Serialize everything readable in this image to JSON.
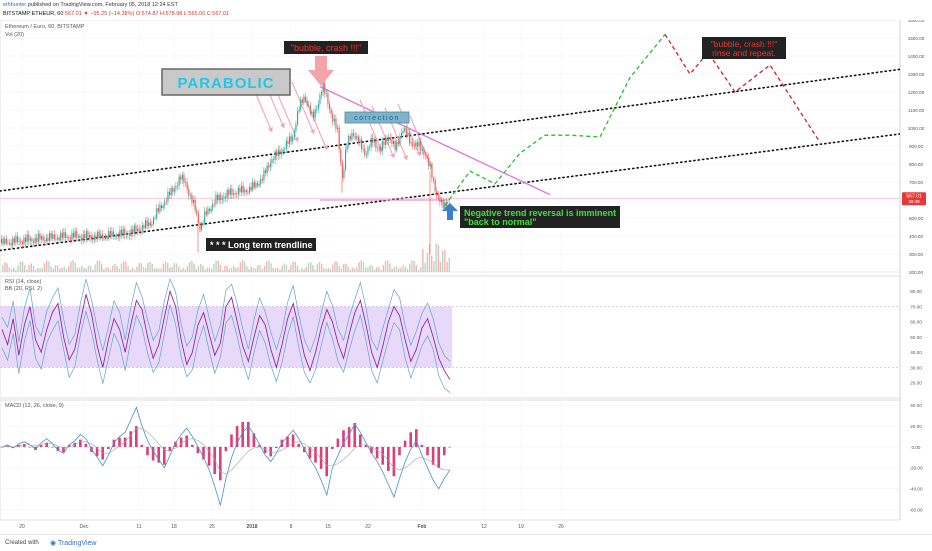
{
  "header": {
    "user": "ethhunter",
    "published": "published on TradingView.com, February 05, 2018 12:24 EST",
    "symbol_line": "BITSTAMP:ETHEUR, 60",
    "ohlc": "567.01 ▼ −95.25 (−14.38%) O:574.87 H:578.98 L:565.00 C:567.01"
  },
  "panes": {
    "main_title": "Ethereum / Euro, 60, BITSTAMP",
    "vol_label": "Vol (20)",
    "rsi_title": "RSI (14, close)",
    "bb_title": "BB (20, RSI, 2)",
    "macd_title": "MACD (12, 26, close, 9)"
  },
  "annotations": {
    "parabolic": "PARABOLIC",
    "bubble1": "\"bubble, crash !!!\"",
    "bubble2_line1": "\"bubble, crash !!!\"",
    "bubble2_line2": "rinse and repeat.",
    "reversal_line1": "Negative trend reversal is imminent",
    "reversal_line2": "\"back to normal\"",
    "trendline_label": "* * * Long term trendline",
    "correction": "correction"
  },
  "price_tag": {
    "value": "567.01",
    "time": "39:48"
  },
  "footer": {
    "created": "Created with",
    "brand": "TradingView"
  },
  "colors": {
    "candle_up": "#26a69a",
    "candle_down": "#ef5350",
    "rsi_line": "#8e24aa",
    "rsi_band": "#e8d9fb",
    "macd_line": "#4a90c8",
    "signal_line": "#d63a7e",
    "projection_green": "#22c02a",
    "projection_red": "#d32020",
    "resistance": "#e07ad8"
  },
  "chart_data": {
    "type": "line",
    "price_axis": {
      "ylim": [
        200,
        1600
      ],
      "ticks": [
        200,
        300,
        400,
        500,
        600,
        700,
        800,
        900,
        1000,
        1100,
        1200,
        1300,
        1400,
        1500,
        1600
      ]
    },
    "rsi_axis": {
      "ylim": [
        10,
        90
      ],
      "ticks": [
        20,
        30,
        40,
        50,
        60,
        70,
        80
      ],
      "overbought": 70,
      "oversold": 30
    },
    "macd_axis": {
      "ylim": [
        -70,
        45
      ],
      "ticks": [
        -60,
        -40,
        -20,
        0,
        20,
        40
      ]
    },
    "x_ticks": [
      "20",
      "Dec",
      "11",
      "18",
      "25",
      "2018",
      "8",
      "15",
      "22",
      "Feb",
      "12",
      "19",
      "26"
    ],
    "price_path": [
      [
        0,
        360
      ],
      [
        20,
        375
      ],
      [
        40,
        385
      ],
      [
        70,
        400
      ],
      [
        100,
        395
      ],
      [
        130,
        420
      ],
      [
        150,
        470
      ],
      [
        160,
        560
      ],
      [
        170,
        640
      ],
      [
        180,
        720
      ],
      [
        185,
        700
      ],
      [
        190,
        610
      ],
      [
        195,
        545
      ],
      [
        200,
        440
      ],
      [
        205,
        520
      ],
      [
        215,
        600
      ],
      [
        230,
        640
      ],
      [
        250,
        660
      ],
      [
        262,
        720
      ],
      [
        270,
        820
      ],
      [
        278,
        860
      ],
      [
        285,
        900
      ],
      [
        292,
        950
      ],
      [
        298,
        1100
      ],
      [
        304,
        1180
      ],
      [
        308,
        1120
      ],
      [
        312,
        1050
      ],
      [
        318,
        1150
      ],
      [
        322,
        1230
      ],
      [
        327,
        1160
      ],
      [
        332,
        1050
      ],
      [
        337,
        980
      ],
      [
        342,
        720
      ],
      [
        346,
        900
      ],
      [
        352,
        980
      ],
      [
        358,
        920
      ],
      [
        365,
        860
      ],
      [
        372,
        930
      ],
      [
        380,
        880
      ],
      [
        388,
        960
      ],
      [
        395,
        880
      ],
      [
        402,
        1000
      ],
      [
        410,
        920
      ],
      [
        418,
        900
      ],
      [
        425,
        860
      ],
      [
        430,
        760
      ],
      [
        436,
        640
      ],
      [
        442,
        560
      ],
      [
        448,
        580
      ]
    ],
    "projection_green": [
      [
        445,
        570
      ],
      [
        470,
        760
      ],
      [
        495,
        690
      ],
      [
        520,
        860
      ],
      [
        545,
        960
      ],
      [
        570,
        960
      ],
      [
        600,
        950
      ],
      [
        630,
        1280
      ],
      [
        665,
        1520
      ]
    ],
    "projection_red": [
      [
        665,
        1520
      ],
      [
        690,
        1300
      ],
      [
        708,
        1420
      ],
      [
        735,
        1200
      ],
      [
        770,
        1350
      ],
      [
        820,
        920
      ]
    ],
    "trendline_upper": [
      [
        0,
        650
      ],
      [
        932,
        1350
      ]
    ],
    "trendline_lower": [
      [
        0,
        320
      ],
      [
        932,
        990
      ]
    ],
    "resistance_line": [
      [
        320,
        1230
      ],
      [
        550,
        630
      ]
    ],
    "support_level": 610,
    "rsi_values": [
      55,
      45,
      62,
      38,
      58,
      70,
      48,
      40,
      55,
      66,
      72,
      50,
      35,
      42,
      60,
      78,
      65,
      44,
      30,
      48,
      62,
      55,
      40,
      58,
      74,
      68,
      50,
      36,
      45,
      63,
      80,
      70,
      48,
      32,
      40,
      58,
      66,
      52,
      38,
      46,
      70,
      76,
      60,
      44,
      34,
      50,
      64,
      58,
      42,
      30,
      45,
      62,
      72,
      55,
      38,
      28,
      40,
      56,
      68,
      60,
      46,
      36,
      52,
      66,
      74,
      58,
      40,
      30,
      44,
      60,
      70,
      64,
      48,
      34,
      42,
      56,
      62,
      50,
      36,
      28,
      22
    ],
    "macd_values": [
      0,
      2,
      -1,
      3,
      5,
      2,
      -2,
      4,
      8,
      3,
      -3,
      -6,
      2,
      6,
      12,
      8,
      -2,
      -10,
      -18,
      -8,
      4,
      10,
      14,
      26,
      38,
      20,
      6,
      -4,
      -12,
      -20,
      -8,
      4,
      12,
      18,
      10,
      0,
      -10,
      -22,
      -38,
      -56,
      -30,
      -10,
      4,
      14,
      20,
      12,
      2,
      -8,
      -14,
      -6,
      4,
      10,
      16,
      8,
      -2,
      -12,
      -20,
      -32,
      -46,
      -20,
      -8,
      4,
      12,
      22,
      14,
      4,
      -6,
      -14,
      -24,
      -36,
      -48,
      -30,
      -14,
      -2,
      6,
      -8,
      -20,
      -32,
      -40,
      -30,
      -22
    ],
    "signal_values": [
      0,
      1,
      0,
      1,
      2,
      2,
      1,
      2,
      4,
      3,
      1,
      -1,
      0,
      2,
      5,
      5,
      3,
      -1,
      -6,
      -6,
      -3,
      1,
      5,
      11,
      18,
      18,
      14,
      9,
      3,
      -3,
      -4,
      -1,
      3,
      7,
      8,
      6,
      2,
      -4,
      -12,
      -24,
      -26,
      -22,
      -16,
      -10,
      -4,
      -1,
      0,
      -2,
      -5,
      -5,
      -3,
      0,
      4,
      5,
      3,
      -1,
      -5,
      -11,
      -18,
      -18,
      -16,
      -12,
      -7,
      -1,
      2,
      2,
      0,
      -3,
      -7,
      -13,
      -20,
      -22,
      -20,
      -16,
      -11,
      -10,
      -12,
      -15,
      -20,
      -22,
      -22
    ]
  }
}
